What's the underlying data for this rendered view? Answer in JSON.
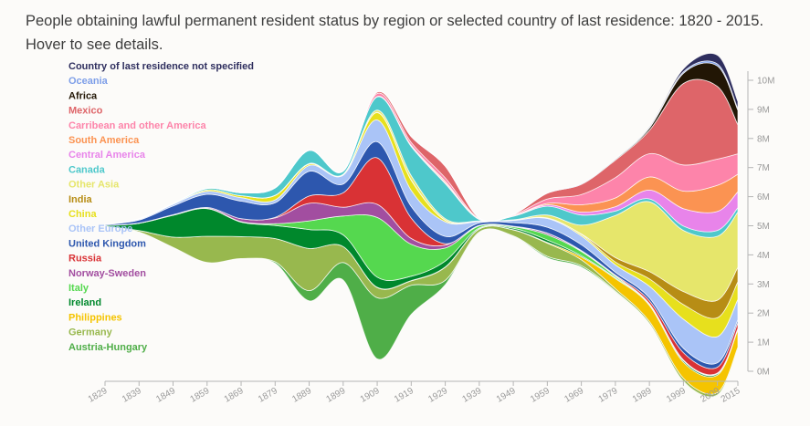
{
  "chart_data": {
    "type": "area",
    "subtype": "streamgraph",
    "title": "People obtaining lawful permanent resident status by region or selected country of last residence: 1820 - 2015. Hover to see details.",
    "x": [
      1829,
      1839,
      1849,
      1859,
      1869,
      1879,
      1889,
      1899,
      1909,
      1919,
      1929,
      1939,
      1949,
      1959,
      1969,
      1979,
      1989,
      1999,
      2009,
      2015
    ],
    "x_tick_labels": [
      "1829",
      "1839",
      "1849",
      "1859",
      "1869",
      "1879",
      "1889",
      "1899",
      "1909",
      "1919",
      "1929",
      "1939",
      "1949",
      "1959",
      "1969",
      "1979",
      "1989",
      "1999",
      "2009",
      "2015"
    ],
    "y_ticks": [
      "0M",
      "1M",
      "2M",
      "3M",
      "4M",
      "5M",
      "6M",
      "7M",
      "8M",
      "9M",
      "10M"
    ],
    "ylim": [
      0,
      10
    ],
    "series": [
      {
        "name": "Austria-Hungary",
        "color": "#4fae48",
        "values": [
          0,
          0,
          0,
          0,
          0,
          0.05,
          0.35,
          0.6,
          2.1,
          1.0,
          0.15,
          0.02,
          0.02,
          0.05,
          0.05,
          0.03,
          0.02,
          0.02,
          0.02,
          0.02
        ]
      },
      {
        "name": "Germany",
        "color": "#98b84e",
        "values": [
          0,
          0.05,
          0.35,
          0.9,
          0.75,
          0.8,
          1.45,
          0.55,
          0.35,
          0.15,
          0.45,
          0.1,
          0.2,
          0.45,
          0.2,
          0.08,
          0.07,
          0.1,
          0.08,
          0.05
        ]
      },
      {
        "name": "Philippines",
        "color": "#f5c400",
        "values": [
          0,
          0,
          0,
          0,
          0,
          0,
          0,
          0,
          0.01,
          0.01,
          0.01,
          0.01,
          0.01,
          0.03,
          0.1,
          0.35,
          0.55,
          0.55,
          0.6,
          0.6
        ]
      },
      {
        "name": "Ireland",
        "color": "#00882c",
        "values": [
          0.02,
          0.25,
          0.75,
          0.95,
          0.5,
          0.45,
          0.65,
          0.4,
          0.35,
          0.15,
          0.2,
          0.03,
          0.05,
          0.08,
          0.04,
          0.03,
          0.03,
          0.05,
          0.04,
          0.02
        ]
      },
      {
        "name": "Italy",
        "color": "#55d84f",
        "values": [
          0,
          0,
          0,
          0.01,
          0.02,
          0.06,
          0.3,
          0.65,
          2.05,
          1.1,
          0.45,
          0.07,
          0.05,
          0.18,
          0.15,
          0.05,
          0.02,
          0.02,
          0.02,
          0.01
        ]
      },
      {
        "name": "Norway-Sweden",
        "color": "#a24ea0",
        "values": [
          0,
          0.01,
          0.02,
          0.03,
          0.1,
          0.2,
          0.6,
          0.3,
          0.45,
          0.2,
          0.1,
          0.01,
          0.01,
          0.05,
          0.02,
          0.01,
          0.01,
          0.01,
          0.01,
          0.01
        ]
      },
      {
        "name": "Russia",
        "color": "#d93235",
        "values": [
          0,
          0,
          0,
          0,
          0,
          0.02,
          0.25,
          0.5,
          1.6,
          0.7,
          0.05,
          0.01,
          0.01,
          0.01,
          0.01,
          0.03,
          0.1,
          0.25,
          0.2,
          0.2
        ]
      },
      {
        "name": "United Kingdom",
        "color": "#2d57ae",
        "values": [
          0.03,
          0.1,
          0.3,
          0.45,
          0.6,
          0.5,
          0.85,
          0.3,
          0.55,
          0.4,
          0.25,
          0.08,
          0.12,
          0.2,
          0.2,
          0.1,
          0.1,
          0.15,
          0.15,
          0.1
        ]
      },
      {
        "name": "Other Europe",
        "color": "#aac4f7",
        "values": [
          0.01,
          0.03,
          0.06,
          0.1,
          0.12,
          0.1,
          0.2,
          0.3,
          0.75,
          0.55,
          0.5,
          0.05,
          0.08,
          0.3,
          0.3,
          0.25,
          0.4,
          1.0,
          0.9,
          0.7
        ]
      },
      {
        "name": "China",
        "color": "#e7e01d",
        "values": [
          0,
          0,
          0,
          0.05,
          0.07,
          0.15,
          0.05,
          0.02,
          0.25,
          0.35,
          0.05,
          0.01,
          0.01,
          0.01,
          0.05,
          0.1,
          0.25,
          0.5,
          0.65,
          0.6
        ]
      },
      {
        "name": "India",
        "color": "#b78d15",
        "values": [
          0,
          0,
          0,
          0,
          0,
          0,
          0,
          0,
          0.01,
          0.01,
          0.01,
          0,
          0,
          0.01,
          0.02,
          0.15,
          0.25,
          0.45,
          0.6,
          0.5
        ]
      },
      {
        "name": "Other Asia",
        "color": "#e6e66b",
        "values": [
          0,
          0,
          0,
          0,
          0,
          0.01,
          0.02,
          0.02,
          0.08,
          0.15,
          0.05,
          0.01,
          0.01,
          0.1,
          0.3,
          1.45,
          2.4,
          2.1,
          2.2,
          1.9
        ]
      },
      {
        "name": "Canada",
        "color": "#4ec8cb",
        "values": [
          0,
          0.01,
          0.02,
          0.05,
          0.1,
          0.25,
          0.45,
          0.1,
          0.45,
          1.0,
          1.2,
          0.05,
          0.12,
          0.3,
          0.35,
          0.15,
          0.1,
          0.15,
          0.2,
          0.15
        ]
      },
      {
        "name": "Central America",
        "color": "#e884ea",
        "values": [
          0,
          0,
          0,
          0,
          0,
          0,
          0,
          0,
          0.01,
          0.02,
          0.03,
          0.01,
          0.01,
          0.05,
          0.1,
          0.15,
          0.3,
          0.6,
          0.65,
          0.55
        ]
      },
      {
        "name": "South America",
        "color": "#fb9352",
        "values": [
          0,
          0,
          0,
          0,
          0,
          0,
          0,
          0,
          0.01,
          0.02,
          0.05,
          0.01,
          0.02,
          0.05,
          0.25,
          0.3,
          0.45,
          0.6,
          0.9,
          0.6
        ]
      },
      {
        "name": "Carribean and other America",
        "color": "#fd84aa",
        "values": [
          0,
          0.01,
          0.01,
          0.01,
          0.02,
          0.02,
          0.02,
          0.02,
          0.1,
          0.1,
          0.12,
          0.01,
          0.02,
          0.15,
          0.35,
          0.7,
          0.8,
          0.9,
          0.9,
          0.7
        ]
      },
      {
        "name": "Mexico",
        "color": "#de6569",
        "values": [
          0,
          0,
          0,
          0,
          0,
          0,
          0,
          0,
          0.05,
          0.2,
          0.4,
          0.02,
          0.02,
          0.2,
          0.35,
          0.6,
          0.8,
          2.8,
          2.5,
          1.0
        ]
      },
      {
        "name": "Africa",
        "color": "#221605",
        "values": [
          0,
          0,
          0,
          0,
          0,
          0,
          0,
          0,
          0,
          0,
          0,
          0,
          0,
          0,
          0.01,
          0.03,
          0.08,
          0.35,
          0.7,
          0.5
        ]
      },
      {
        "name": "Oceania",
        "color": "#7d9ee8",
        "values": [
          0,
          0,
          0,
          0,
          0,
          0,
          0,
          0,
          0.01,
          0.01,
          0.01,
          0,
          0,
          0.01,
          0.02,
          0.02,
          0.03,
          0.05,
          0.07,
          0.05
        ]
      },
      {
        "name": "Country of last residence not specified",
        "color": "#2e2e5e",
        "values": [
          0,
          0,
          0,
          0,
          0,
          0,
          0,
          0,
          0,
          0,
          0,
          0,
          0,
          0,
          0,
          0,
          0.02,
          0.1,
          0.3,
          0.25
        ]
      }
    ],
    "legend_order": [
      "Country of last residence not specified",
      "Oceania",
      "Africa",
      "Mexico",
      "Carribean and other America",
      "South America",
      "Central America",
      "Canada",
      "Other Asia",
      "India",
      "China",
      "Other Europe",
      "United Kingdom",
      "Russia",
      "Norway-Sweden",
      "Italy",
      "Ireland",
      "Philippines",
      "Germany",
      "Austria-Hungary"
    ],
    "legend_position": "left",
    "grid": false
  }
}
